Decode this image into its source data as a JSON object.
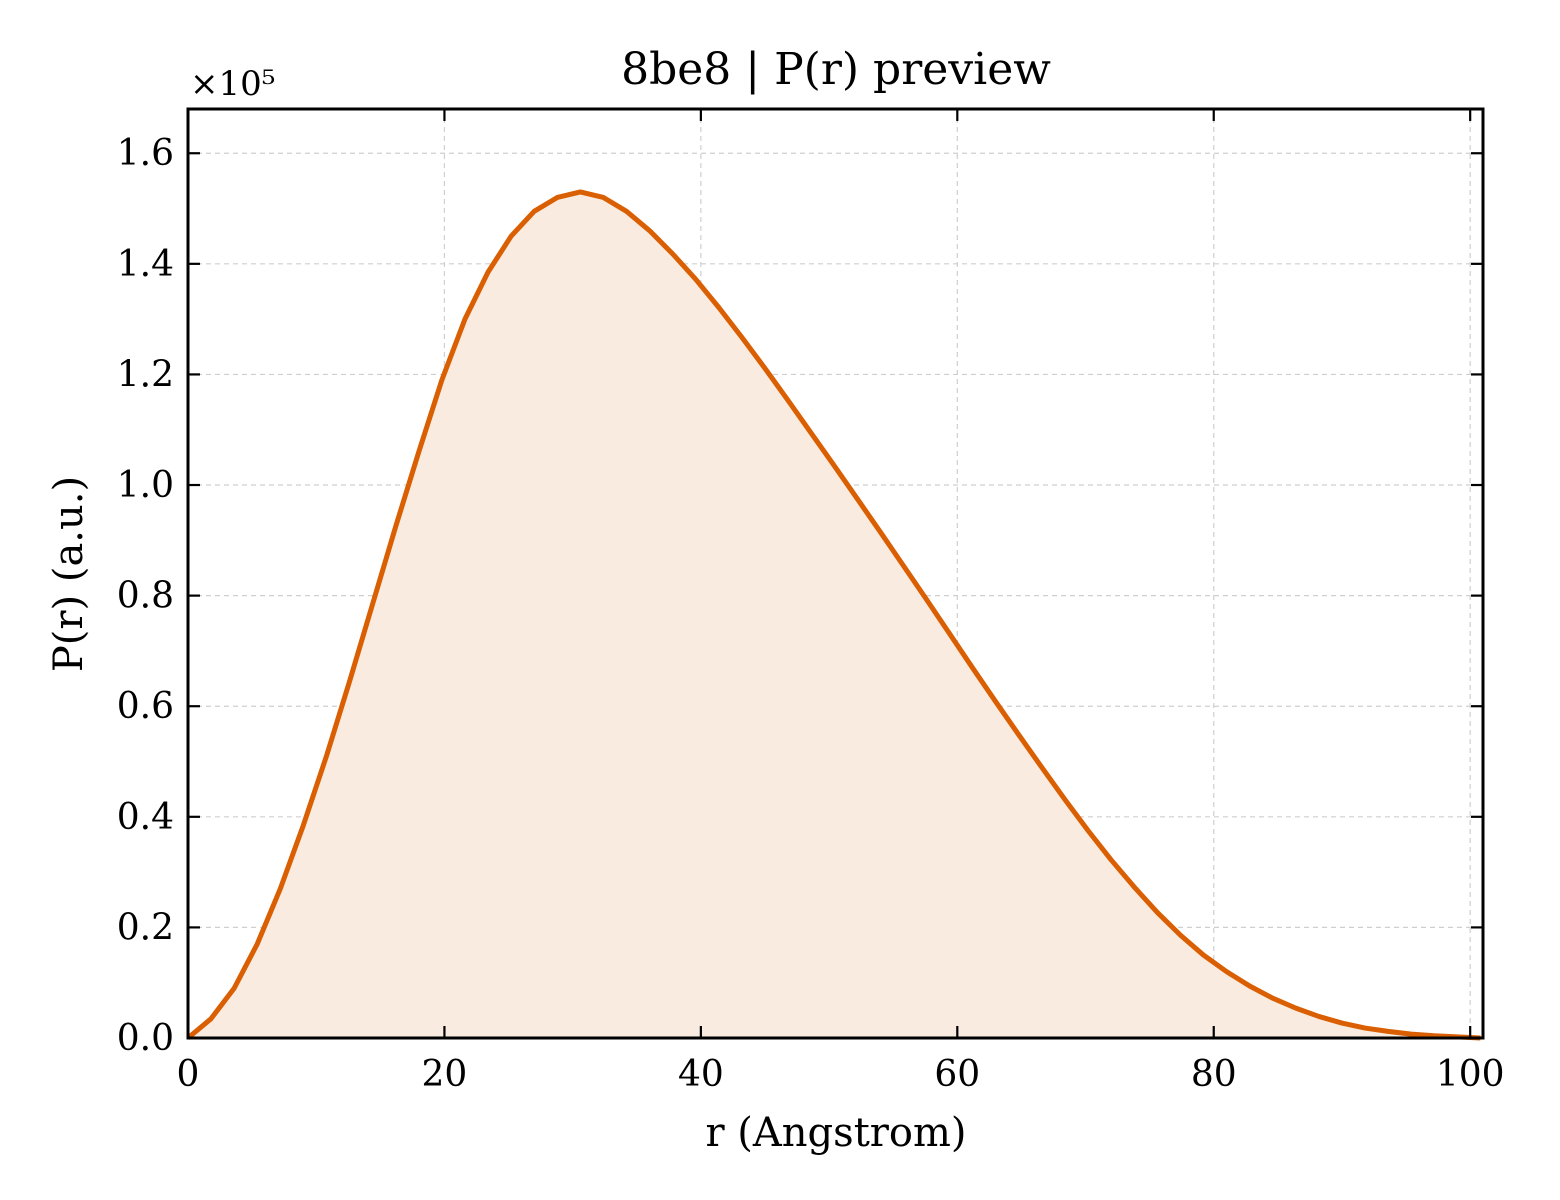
{
  "chart_data": {
    "type": "area",
    "title": "8be8 | P(r) preview",
    "xlabel": "r (Angstrom)",
    "ylabel": "P(r) (a.u.)",
    "y_multiplier_label": "×10⁵",
    "y_scale_factor": 100000,
    "xlim": [
      0,
      101
    ],
    "ylim": [
      0,
      168000
    ],
    "xticks": [
      0,
      20,
      40,
      60,
      80,
      100
    ],
    "xtick_labels": [
      "0",
      "20",
      "40",
      "60",
      "80",
      "100"
    ],
    "yticks": [
      0,
      20000,
      40000,
      60000,
      80000,
      100000,
      120000,
      140000,
      160000
    ],
    "ytick_labels": [
      "0.0",
      "0.2",
      "0.4",
      "0.6",
      "0.8",
      "1.0",
      "1.2",
      "1.4",
      "1.6"
    ],
    "grid": true,
    "legend": "none",
    "line_color": "#d95f02",
    "fill_color": "#f9ebe0",
    "series": [
      {
        "x": [
          0,
          1.8,
          3.6,
          5.4,
          7.2,
          9.0,
          10.8,
          12.6,
          14.4,
          16.2,
          18.0,
          19.8,
          21.6,
          23.4,
          25.2,
          27.0,
          28.8,
          30.6,
          32.4,
          34.2,
          36.0,
          37.8,
          39.6,
          41.4,
          43.2,
          45.0,
          46.8,
          48.6,
          50.4,
          52.2,
          54.0,
          55.8,
          57.6,
          59.4,
          61.2,
          63.0,
          64.8,
          66.6,
          68.4,
          70.2,
          72.0,
          73.8,
          75.6,
          77.4,
          79.2,
          81.0,
          82.8,
          84.6,
          86.4,
          88.2,
          90.0,
          91.8,
          93.6,
          95.4,
          97.2,
          99.0,
          100.8
        ],
        "y": [
          0,
          3500,
          9000,
          17000,
          27000,
          38500,
          51000,
          64500,
          78500,
          92500,
          106000,
          119000,
          130000,
          138500,
          145000,
          149500,
          152000,
          153000,
          152000,
          149500,
          146000,
          141800,
          137200,
          132100,
          126700,
          121100,
          115300,
          109400,
          103500,
          97500,
          91500,
          85400,
          79300,
          73100,
          66900,
          60800,
          54800,
          48900,
          43100,
          37500,
          32200,
          27300,
          22700,
          18600,
          15000,
          12000,
          9400,
          7200,
          5400,
          3900,
          2700,
          1800,
          1200,
          700,
          400,
          200,
          0
        ]
      }
    ]
  }
}
